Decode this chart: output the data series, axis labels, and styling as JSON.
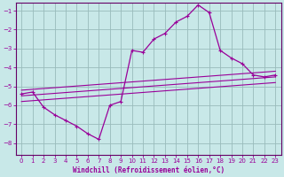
{
  "title": "Windchill (Refroidissement éolien,°C)",
  "background_color": "#c8e8e8",
  "grid_color": "#99bbbb",
  "line_color": "#990099",
  "spine_color": "#660066",
  "xlim": [
    -0.5,
    23.5
  ],
  "ylim": [
    -8.6,
    -0.6
  ],
  "xticks": [
    0,
    1,
    2,
    3,
    4,
    5,
    6,
    7,
    8,
    9,
    10,
    11,
    12,
    13,
    14,
    15,
    16,
    17,
    18,
    19,
    20,
    21,
    22,
    23
  ],
  "yticks": [
    -8,
    -7,
    -6,
    -5,
    -4,
    -3,
    -2,
    -1
  ],
  "main_x": [
    0,
    1,
    2,
    3,
    4,
    5,
    6,
    7,
    8,
    9,
    10,
    11,
    12,
    13,
    14,
    15,
    16,
    17,
    18,
    19,
    20,
    21,
    22,
    23
  ],
  "main_y": [
    -5.4,
    -5.3,
    -6.1,
    -6.5,
    -6.8,
    -7.1,
    -7.5,
    -7.8,
    -6.0,
    -5.8,
    -3.1,
    -3.2,
    -2.5,
    -2.2,
    -1.6,
    -1.3,
    -0.7,
    -1.1,
    -3.1,
    -3.5,
    -3.8,
    -4.4,
    -4.5,
    -4.4
  ],
  "ref_lines": [
    {
      "x0": 0,
      "y0": -5.2,
      "x1": 23,
      "y1": -4.2
    },
    {
      "x0": 0,
      "y0": -5.5,
      "x1": 23,
      "y1": -4.5
    },
    {
      "x0": 0,
      "y0": -5.8,
      "x1": 23,
      "y1": -4.8
    }
  ],
  "tick_fontsize": 5,
  "xlabel_fontsize": 5.5,
  "lw_main": 0.9,
  "lw_ref": 0.8,
  "marker_size": 3.0
}
